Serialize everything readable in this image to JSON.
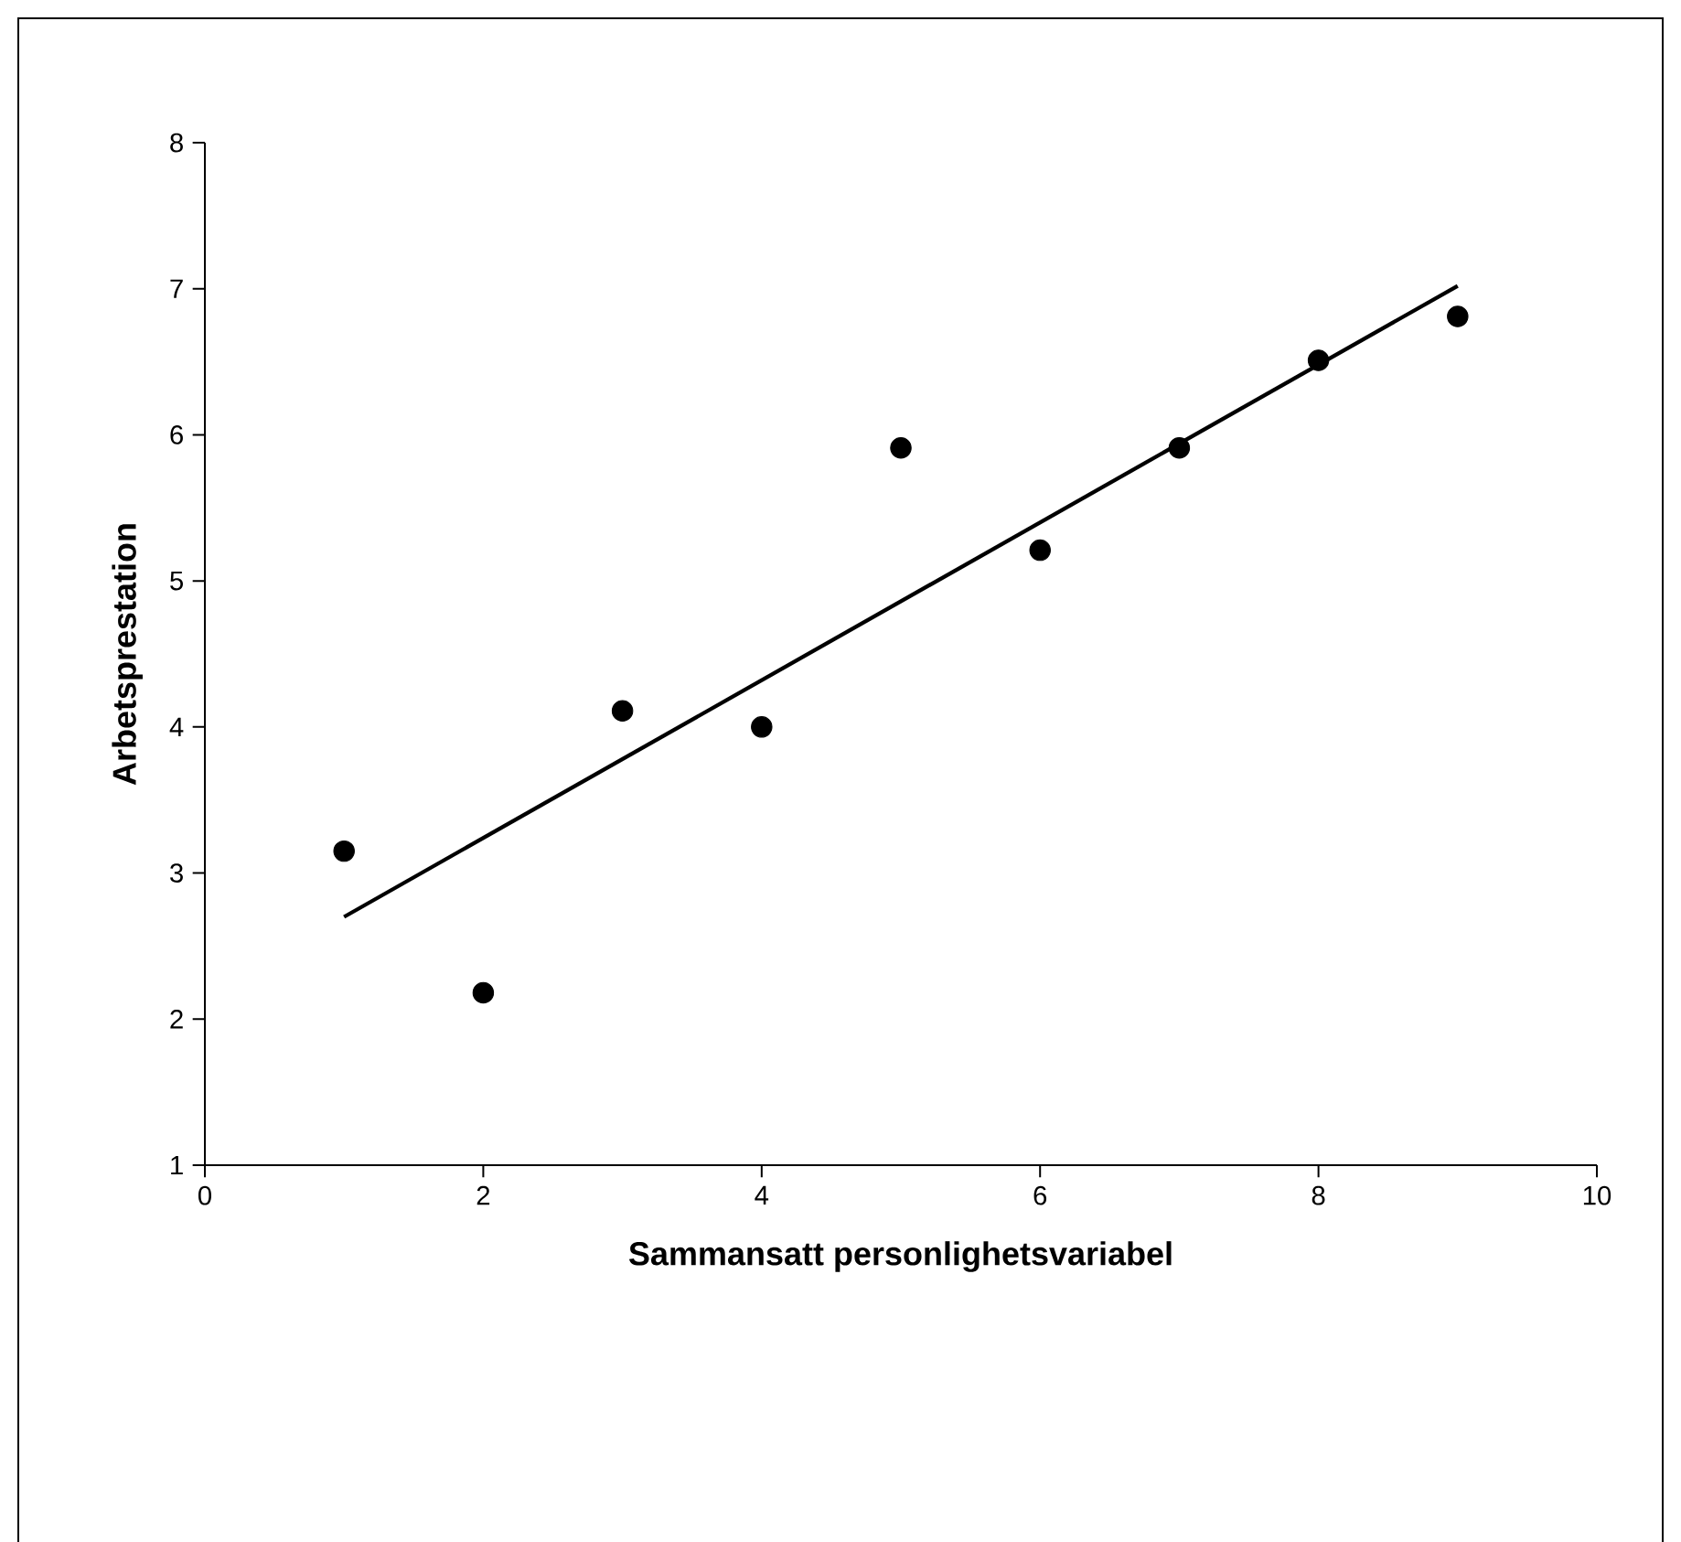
{
  "chart_data": {
    "type": "scatter",
    "xlabel": "Sammansatt personlighetsvariabel",
    "ylabel": "Arbetsprestation",
    "xlim": [
      0,
      10
    ],
    "ylim": [
      1,
      8
    ],
    "xticks": [
      0,
      2,
      4,
      6,
      8,
      10
    ],
    "yticks": [
      1,
      2,
      3,
      4,
      5,
      6,
      7,
      8
    ],
    "grid": false,
    "marker": "circle",
    "series": [
      {
        "color": "#000000",
        "x": [
          1,
          2,
          3,
          4,
          5,
          6,
          7,
          8,
          9
        ],
        "values": [
          3.15,
          2.18,
          4.11,
          4.0,
          5.91,
          5.21,
          5.91,
          6.51,
          6.81
        ]
      },
      {
        "type": "line",
        "color": "#000000",
        "marker": "none",
        "line_style": "solid",
        "x": [
          1,
          9
        ],
        "values": [
          2.7,
          7.02
        ]
      }
    ]
  }
}
